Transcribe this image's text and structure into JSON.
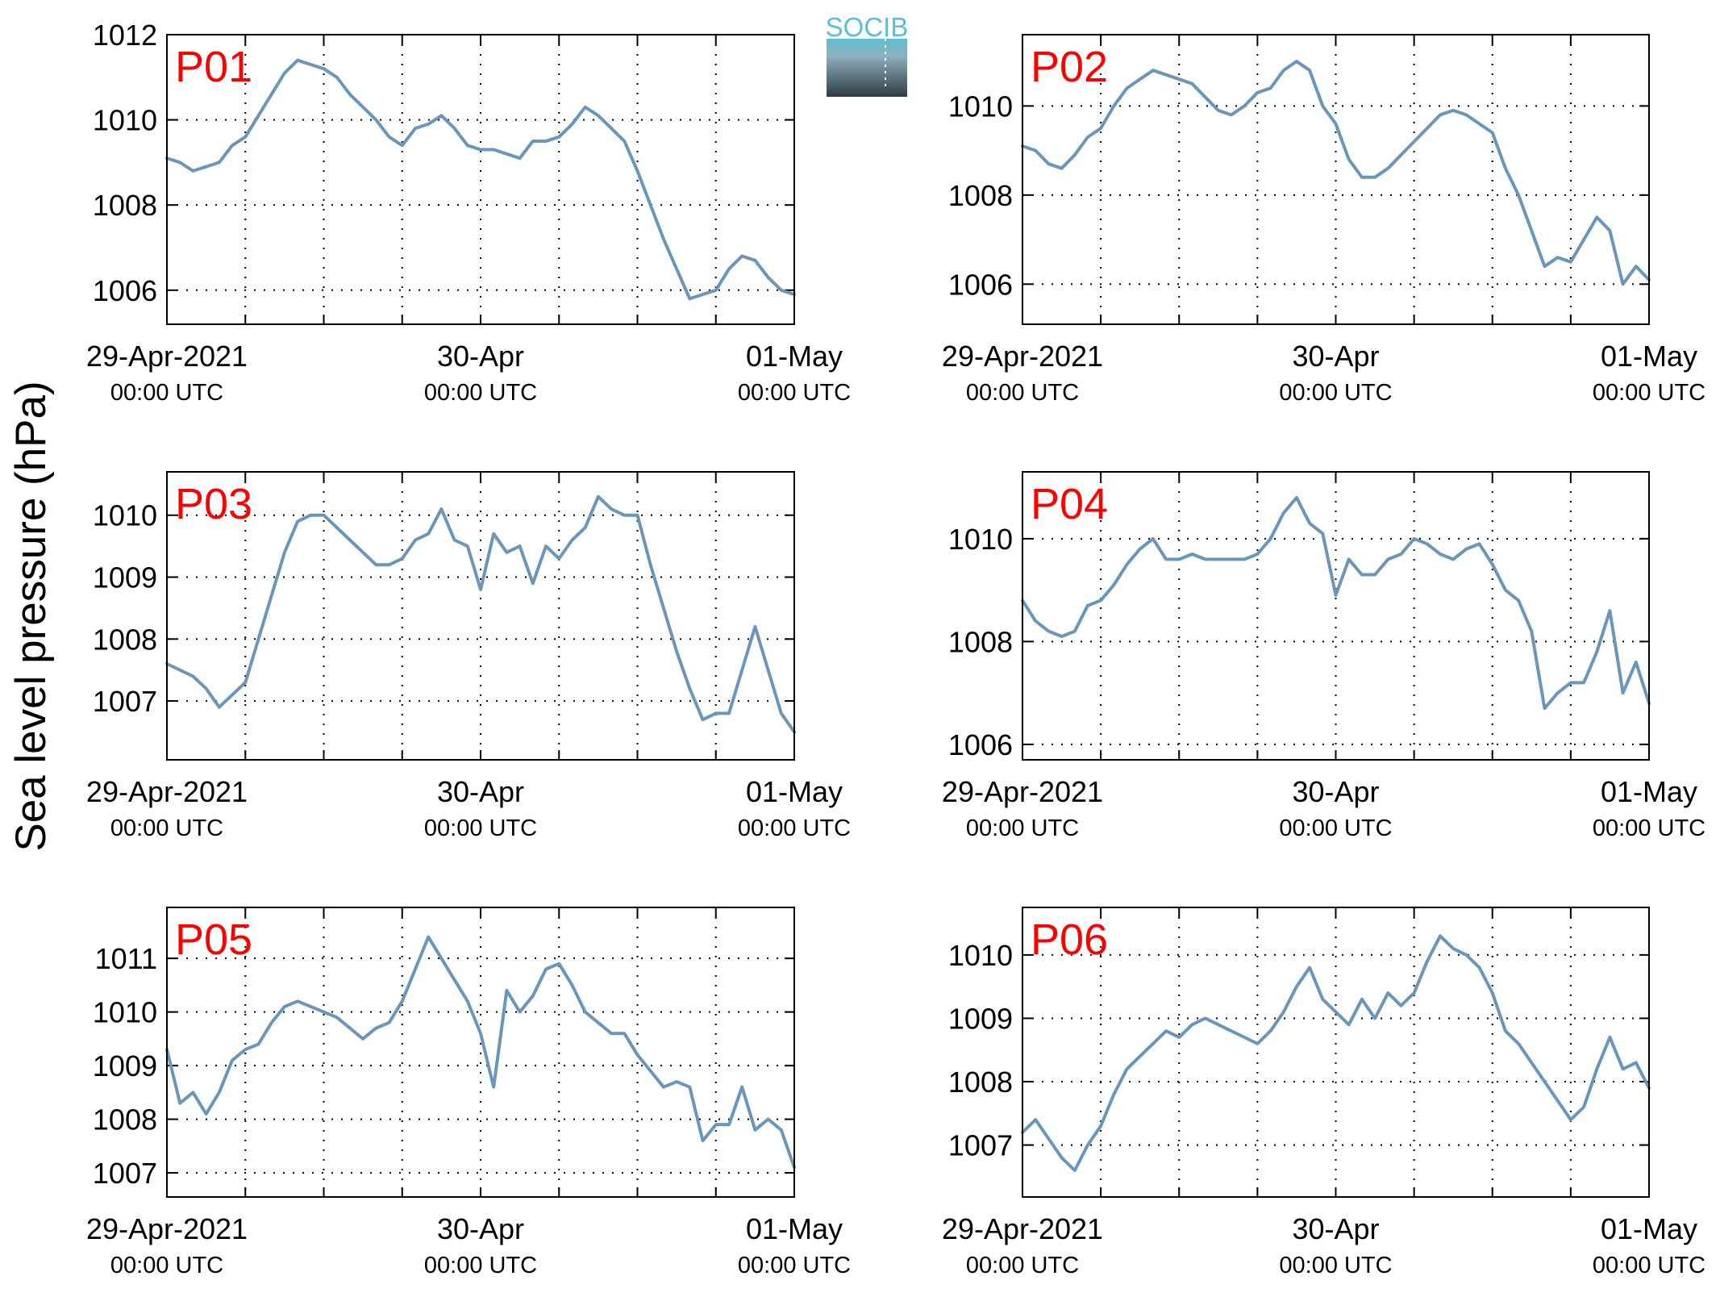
{
  "figure": {
    "ylabel": "Sea level pressure (hPa)",
    "logo_text": "SOCIB",
    "colors": {
      "line": "#6a96bb",
      "panel_label": "#ff0000",
      "axis": "#000000",
      "grid": "#000000",
      "logo_top": "#5bbfd3",
      "logo_bottom": "#2e3c46"
    }
  },
  "chart_data": [
    {
      "type": "line",
      "label": "P01",
      "xticks": [
        {
          "line1": "29-Apr-2021",
          "line2": "00:00 UTC"
        },
        {
          "line1": "30-Apr",
          "line2": "00:00 UTC"
        },
        {
          "line1": "01-May",
          "line2": "00:00 UTC"
        }
      ],
      "xlim": [
        0,
        48
      ],
      "ylim": [
        1005.2,
        1012
      ],
      "yticks": [
        1006,
        1008,
        1010,
        1012
      ],
      "x": [
        0,
        1,
        2,
        3,
        4,
        5,
        6,
        7,
        8,
        9,
        10,
        11,
        12,
        13,
        14,
        15,
        16,
        17,
        18,
        19,
        20,
        21,
        22,
        23,
        24,
        25,
        26,
        27,
        28,
        29,
        30,
        31,
        32,
        33,
        34,
        35,
        36,
        37,
        38,
        39,
        40,
        41,
        42,
        43,
        44,
        45,
        46,
        47,
        48
      ],
      "y": [
        1009.1,
        1009.0,
        1008.8,
        1008.9,
        1009.0,
        1009.4,
        1009.6,
        1010.1,
        1010.6,
        1011.1,
        1011.4,
        1011.3,
        1011.2,
        1011.0,
        1010.6,
        1010.3,
        1010.0,
        1009.6,
        1009.4,
        1009.8,
        1009.9,
        1010.1,
        1009.8,
        1009.4,
        1009.3,
        1009.3,
        1009.2,
        1009.1,
        1009.5,
        1009.5,
        1009.6,
        1009.9,
        1010.3,
        1010.1,
        1009.8,
        1009.5,
        1008.8,
        1008.0,
        1007.2,
        1006.5,
        1005.8,
        1005.9,
        1006.0,
        1006.5,
        1006.8,
        1006.7,
        1006.3,
        1006.0,
        1005.9
      ]
    },
    {
      "type": "line",
      "label": "P02",
      "xticks": [
        {
          "line1": "29-Apr-2021",
          "line2": "00:00 UTC"
        },
        {
          "line1": "30-Apr",
          "line2": "00:00 UTC"
        },
        {
          "line1": "01-May",
          "line2": "00:00 UTC"
        }
      ],
      "xlim": [
        0,
        48
      ],
      "ylim": [
        1005.1,
        1011.6
      ],
      "yticks": [
        1006,
        1008,
        1010
      ],
      "x": [
        0,
        1,
        2,
        3,
        4,
        5,
        6,
        7,
        8,
        9,
        10,
        11,
        12,
        13,
        14,
        15,
        16,
        17,
        18,
        19,
        20,
        21,
        22,
        23,
        24,
        25,
        26,
        27,
        28,
        29,
        30,
        31,
        32,
        33,
        34,
        35,
        36,
        37,
        38,
        39,
        40,
        41,
        42,
        43,
        44,
        45,
        46,
        47,
        48
      ],
      "y": [
        1009.1,
        1009.0,
        1008.7,
        1008.6,
        1008.9,
        1009.3,
        1009.5,
        1010.0,
        1010.4,
        1010.6,
        1010.8,
        1010.7,
        1010.6,
        1010.5,
        1010.2,
        1009.9,
        1009.8,
        1010.0,
        1010.3,
        1010.4,
        1010.8,
        1011.0,
        1010.8,
        1010.0,
        1009.6,
        1008.8,
        1008.4,
        1008.4,
        1008.6,
        1008.9,
        1009.2,
        1009.5,
        1009.8,
        1009.9,
        1009.8,
        1009.6,
        1009.4,
        1008.6,
        1008.0,
        1007.2,
        1006.4,
        1006.6,
        1006.5,
        1007.0,
        1007.5,
        1007.2,
        1006.0,
        1006.4,
        1006.1
      ]
    },
    {
      "type": "line",
      "label": "P03",
      "xticks": [
        {
          "line1": "29-Apr-2021",
          "line2": "00:00 UTC"
        },
        {
          "line1": "30-Apr",
          "line2": "00:00 UTC"
        },
        {
          "line1": "01-May",
          "line2": "00:00 UTC"
        }
      ],
      "xlim": [
        0,
        48
      ],
      "ylim": [
        1006.05,
        1010.7
      ],
      "yticks": [
        1007,
        1008,
        1009,
        1010
      ],
      "x": [
        0,
        1,
        2,
        3,
        4,
        5,
        6,
        7,
        8,
        9,
        10,
        11,
        12,
        13,
        14,
        15,
        16,
        17,
        18,
        19,
        20,
        21,
        22,
        23,
        24,
        25,
        26,
        27,
        28,
        29,
        30,
        31,
        32,
        33,
        34,
        35,
        36,
        37,
        38,
        39,
        40,
        41,
        42,
        43,
        44,
        45,
        46,
        47,
        48
      ],
      "y": [
        1007.6,
        1007.5,
        1007.4,
        1007.2,
        1006.9,
        1007.1,
        1007.3,
        1008.0,
        1008.7,
        1009.4,
        1009.9,
        1010.0,
        1010.0,
        1009.8,
        1009.6,
        1009.4,
        1009.2,
        1009.2,
        1009.3,
        1009.6,
        1009.7,
        1010.1,
        1009.6,
        1009.5,
        1008.8,
        1009.7,
        1009.4,
        1009.5,
        1008.9,
        1009.5,
        1009.3,
        1009.6,
        1009.8,
        1010.3,
        1010.1,
        1010.0,
        1010.0,
        1009.2,
        1008.5,
        1007.8,
        1007.2,
        1006.7,
        1006.8,
        1006.8,
        1007.5,
        1008.2,
        1007.5,
        1006.8,
        1006.5
      ]
    },
    {
      "type": "line",
      "label": "P04",
      "xticks": [
        {
          "line1": "29-Apr-2021",
          "line2": "00:00 UTC"
        },
        {
          "line1": "30-Apr",
          "line2": "00:00 UTC"
        },
        {
          "line1": "01-May",
          "line2": "00:00 UTC"
        }
      ],
      "xlim": [
        0,
        48
      ],
      "ylim": [
        1005.7,
        1011.3
      ],
      "yticks": [
        1006,
        1008,
        1010
      ],
      "x": [
        0,
        1,
        2,
        3,
        4,
        5,
        6,
        7,
        8,
        9,
        10,
        11,
        12,
        13,
        14,
        15,
        16,
        17,
        18,
        19,
        20,
        21,
        22,
        23,
        24,
        25,
        26,
        27,
        28,
        29,
        30,
        31,
        32,
        33,
        34,
        35,
        36,
        37,
        38,
        39,
        40,
        41,
        42,
        43,
        44,
        45,
        46,
        47,
        48
      ],
      "y": [
        1008.8,
        1008.4,
        1008.2,
        1008.1,
        1008.2,
        1008.7,
        1008.8,
        1009.1,
        1009.5,
        1009.8,
        1010.0,
        1009.6,
        1009.6,
        1009.7,
        1009.6,
        1009.6,
        1009.6,
        1009.6,
        1009.7,
        1010.0,
        1010.5,
        1010.8,
        1010.3,
        1010.1,
        1008.9,
        1009.6,
        1009.3,
        1009.3,
        1009.6,
        1009.7,
        1010.0,
        1009.9,
        1009.7,
        1009.6,
        1009.8,
        1009.9,
        1009.5,
        1009.0,
        1008.8,
        1008.2,
        1006.7,
        1007.0,
        1007.2,
        1007.2,
        1007.8,
        1008.6,
        1007.0,
        1007.6,
        1006.8
      ]
    },
    {
      "type": "line",
      "label": "P05",
      "xticks": [
        {
          "line1": "29-Apr-2021",
          "line2": "00:00 UTC"
        },
        {
          "line1": "30-Apr",
          "line2": "00:00 UTC"
        },
        {
          "line1": "01-May",
          "line2": "00:00 UTC"
        }
      ],
      "xlim": [
        0,
        48
      ],
      "ylim": [
        1006.55,
        1011.95
      ],
      "yticks": [
        1007,
        1008,
        1009,
        1010,
        1011
      ],
      "x": [
        0,
        1,
        2,
        3,
        4,
        5,
        6,
        7,
        8,
        9,
        10,
        11,
        12,
        13,
        14,
        15,
        16,
        17,
        18,
        19,
        20,
        21,
        22,
        23,
        24,
        25,
        26,
        27,
        28,
        29,
        30,
        31,
        32,
        33,
        34,
        35,
        36,
        37,
        38,
        39,
        40,
        41,
        42,
        43,
        44,
        45,
        46,
        47,
        48
      ],
      "y": [
        1009.3,
        1008.3,
        1008.5,
        1008.1,
        1008.5,
        1009.1,
        1009.3,
        1009.4,
        1009.8,
        1010.1,
        1010.2,
        1010.1,
        1010.0,
        1009.9,
        1009.7,
        1009.5,
        1009.7,
        1009.8,
        1010.2,
        1010.8,
        1011.4,
        1011.0,
        1010.6,
        1010.2,
        1009.6,
        1008.6,
        1010.4,
        1010.0,
        1010.3,
        1010.8,
        1010.9,
        1010.5,
        1010.0,
        1009.8,
        1009.6,
        1009.6,
        1009.2,
        1008.9,
        1008.6,
        1008.7,
        1008.6,
        1007.6,
        1007.9,
        1007.9,
        1008.6,
        1007.8,
        1008.0,
        1007.8,
        1007.1
      ]
    },
    {
      "type": "line",
      "label": "P06",
      "xticks": [
        {
          "line1": "29-Apr-2021",
          "line2": "00:00 UTC"
        },
        {
          "line1": "30-Apr",
          "line2": "00:00 UTC"
        },
        {
          "line1": "01-May",
          "line2": "00:00 UTC"
        }
      ],
      "xlim": [
        0,
        48
      ],
      "ylim": [
        1006.18,
        1010.75
      ],
      "yticks": [
        1007,
        1008,
        1009,
        1010
      ],
      "x": [
        0,
        1,
        2,
        3,
        4,
        5,
        6,
        7,
        8,
        9,
        10,
        11,
        12,
        13,
        14,
        15,
        16,
        17,
        18,
        19,
        20,
        21,
        22,
        23,
        24,
        25,
        26,
        27,
        28,
        29,
        30,
        31,
        32,
        33,
        34,
        35,
        36,
        37,
        38,
        39,
        40,
        41,
        42,
        43,
        44,
        45,
        46,
        47,
        48
      ],
      "y": [
        1007.2,
        1007.4,
        1007.1,
        1006.8,
        1006.6,
        1007.0,
        1007.3,
        1007.8,
        1008.2,
        1008.4,
        1008.6,
        1008.8,
        1008.7,
        1008.9,
        1009.0,
        1008.9,
        1008.8,
        1008.7,
        1008.6,
        1008.8,
        1009.1,
        1009.5,
        1009.8,
        1009.3,
        1009.1,
        1008.9,
        1009.3,
        1009.0,
        1009.4,
        1009.2,
        1009.4,
        1009.9,
        1010.3,
        1010.1,
        1010.0,
        1009.8,
        1009.4,
        1008.8,
        1008.6,
        1008.3,
        1008.0,
        1007.7,
        1007.4,
        1007.6,
        1008.2,
        1008.7,
        1008.2,
        1008.3,
        1007.9
      ]
    }
  ]
}
